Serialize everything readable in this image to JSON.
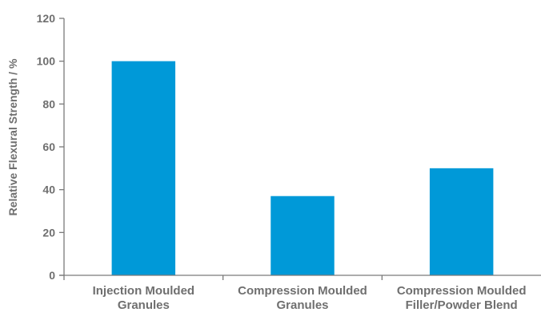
{
  "chart_data": {
    "type": "bar",
    "title": "",
    "xlabel": "",
    "ylabel": "Relative Flexural Strength / %",
    "ylim": [
      0,
      120
    ],
    "yticks": [
      0,
      20,
      40,
      60,
      80,
      100,
      120
    ],
    "grid": false,
    "categories": [
      [
        "Injection Moulded",
        "Granules"
      ],
      [
        "Compression Moulded",
        "Granules"
      ],
      [
        "Compression Moulded",
        "Filler/Powder Blend"
      ]
    ],
    "values": [
      100,
      37,
      50
    ],
    "bar_color": "#0099d8",
    "axis_color": "#7a7a7a",
    "text_color": "#6f6f6f"
  }
}
